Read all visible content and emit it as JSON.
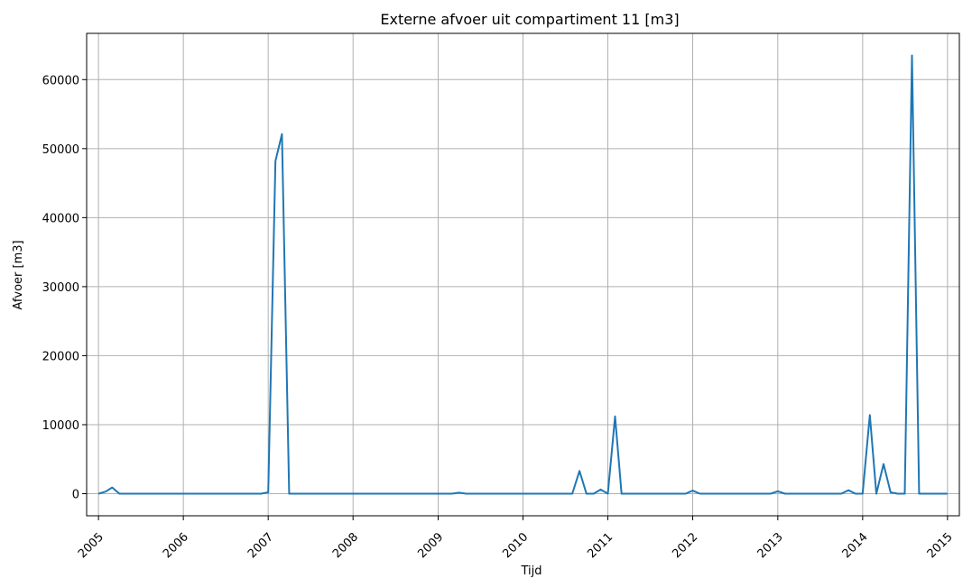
{
  "chart_data": {
    "type": "line",
    "title": "Externe afvoer uit compartiment 11 [m3]",
    "xlabel": "Tijd",
    "ylabel": "Afvoer [m3]",
    "grid": true,
    "x_tick_labels": [
      "2005",
      "2006",
      "2007",
      "2008",
      "2009",
      "2010",
      "2011",
      "2012",
      "2013",
      "2014",
      "2015"
    ],
    "y_tick_labels": [
      "0",
      "10000",
      "20000",
      "30000",
      "40000",
      "50000",
      "60000"
    ],
    "y_ticks": [
      0,
      10000,
      20000,
      30000,
      40000,
      50000,
      60000
    ],
    "xlim": [
      "2004-11-11",
      "2015-02-21"
    ],
    "ylim": [
      -3200,
      66700
    ],
    "color": "#1f77b4",
    "series": [
      {
        "points": [
          [
            "2005-01-01",
            0
          ],
          [
            "2005-02-01",
            300
          ],
          [
            "2005-03-01",
            900
          ],
          [
            "2005-04-01",
            0
          ],
          [
            "2006-12-01",
            0
          ],
          [
            "2007-01-01",
            200
          ],
          [
            "2007-02-01",
            48200
          ],
          [
            "2007-03-01",
            52100
          ],
          [
            "2007-04-01",
            0
          ],
          [
            "2009-03-01",
            0
          ],
          [
            "2009-04-01",
            150
          ],
          [
            "2009-05-01",
            0
          ],
          [
            "2010-08-01",
            0
          ],
          [
            "2010-09-01",
            3300
          ],
          [
            "2010-10-01",
            0
          ],
          [
            "2010-11-01",
            0
          ],
          [
            "2010-12-01",
            600
          ],
          [
            "2011-01-01",
            0
          ],
          [
            "2011-02-01",
            11200
          ],
          [
            "2011-03-01",
            0
          ],
          [
            "2011-12-01",
            0
          ],
          [
            "2012-01-01",
            450
          ],
          [
            "2012-02-01",
            0
          ],
          [
            "2012-12-01",
            0
          ],
          [
            "2013-01-01",
            350
          ],
          [
            "2013-02-01",
            0
          ],
          [
            "2013-10-01",
            0
          ],
          [
            "2013-11-01",
            500
          ],
          [
            "2013-12-01",
            0
          ],
          [
            "2014-01-01",
            0
          ],
          [
            "2014-02-01",
            11400
          ],
          [
            "2014-03-01",
            0
          ],
          [
            "2014-04-01",
            4300
          ],
          [
            "2014-05-01",
            200
          ],
          [
            "2014-06-01",
            0
          ],
          [
            "2014-07-01",
            0
          ],
          [
            "2014-08-01",
            63500
          ],
          [
            "2014-09-01",
            0
          ],
          [
            "2015-01-01",
            0
          ]
        ]
      }
    ]
  }
}
